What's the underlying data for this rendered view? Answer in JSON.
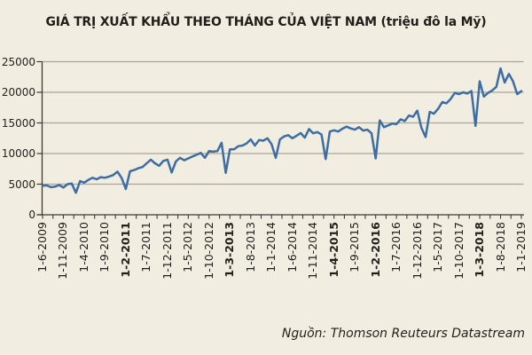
{
  "title": "GIÁ TRỊ XUẤT KHẨU THEO THÁNG CỦA VIỆT NAM (triệu đô la Mỹ)",
  "source": "Nguồn: Thomson Reuteurs Datastream",
  "colors": {
    "background": "#f1ede0",
    "line": "#3d6da3",
    "grid": "#a9a699",
    "axis": "#3c3a36",
    "text": "#211f1b"
  },
  "chart_data": {
    "type": "line",
    "title": "GIÁ TRỊ XUẤT KHẨU THEO THÁNG CỦA VIỆT NAM (triệu đô la Mỹ)",
    "xlabel": "",
    "ylabel": "",
    "ylim": [
      0,
      25000
    ],
    "yticks": [
      0,
      5000,
      10000,
      15000,
      20000,
      25000
    ],
    "grid": true,
    "legend": "none",
    "x_monthly_range": {
      "start": "1-6-2009",
      "end": "1-1-2019"
    },
    "x_ticks": [
      {
        "label": "1-6-2009",
        "bold": false
      },
      {
        "label": "1-11-2009",
        "bold": false
      },
      {
        "label": "1-4-2010",
        "bold": false
      },
      {
        "label": "1-9-2010",
        "bold": false
      },
      {
        "label": "1-2-2011",
        "bold": true
      },
      {
        "label": "1-7-2011",
        "bold": false
      },
      {
        "label": "1-12-2011",
        "bold": false
      },
      {
        "label": "1-5-2012",
        "bold": false
      },
      {
        "label": "1-10-2012",
        "bold": false
      },
      {
        "label": "1-3-2013",
        "bold": true
      },
      {
        "label": "1-8-2013",
        "bold": false
      },
      {
        "label": "1-1-2014",
        "bold": false
      },
      {
        "label": "1-6-2014",
        "bold": false
      },
      {
        "label": "1-11-2014",
        "bold": false
      },
      {
        "label": "1-4-2015",
        "bold": true
      },
      {
        "label": "1-9-2015",
        "bold": false
      },
      {
        "label": "1-2-2016",
        "bold": true
      },
      {
        "label": "1-7-2016",
        "bold": false
      },
      {
        "label": "1-12-2016",
        "bold": false
      },
      {
        "label": "1-5-2017",
        "bold": false
      },
      {
        "label": "1-10-2017",
        "bold": false
      },
      {
        "label": "1-3-2018",
        "bold": true
      },
      {
        "label": "1-8-2018",
        "bold": false
      },
      {
        "label": "1-1-2019",
        "bold": false
      }
    ],
    "series": [
      {
        "name": "Giá trị xuất khẩu theo tháng (triệu đô la Mỹ)",
        "values": [
          4750,
          4800,
          4500,
          4600,
          4850,
          4450,
          5000,
          5100,
          3600,
          5500,
          5250,
          5700,
          6050,
          5800,
          6150,
          6050,
          6250,
          6500,
          7050,
          6000,
          4200,
          7100,
          7300,
          7600,
          7800,
          8400,
          9000,
          8400,
          8000,
          8800,
          9000,
          6900,
          8700,
          9300,
          8900,
          9200,
          9500,
          9800,
          10100,
          9300,
          10400,
          10300,
          10400,
          11750,
          6850,
          10700,
          10700,
          11200,
          11300,
          11650,
          12300,
          11300,
          12200,
          12100,
          12500,
          11500,
          9300,
          12300,
          12800,
          13000,
          12500,
          12900,
          13350,
          12600,
          14000,
          13300,
          13500,
          13100,
          9100,
          13600,
          13800,
          13600,
          14050,
          14400,
          14100,
          13900,
          14300,
          13750,
          13900,
          13300,
          9200,
          15400,
          14300,
          14600,
          14900,
          14800,
          15600,
          15300,
          16200,
          16000,
          17000,
          14200,
          12700,
          16800,
          16500,
          17300,
          18400,
          18200,
          18900,
          19900,
          19700,
          20000,
          19800,
          20200,
          14500,
          21800,
          19300,
          19900,
          20300,
          20900,
          23900,
          21600,
          23000,
          21800,
          19700,
          20200
        ]
      }
    ]
  }
}
